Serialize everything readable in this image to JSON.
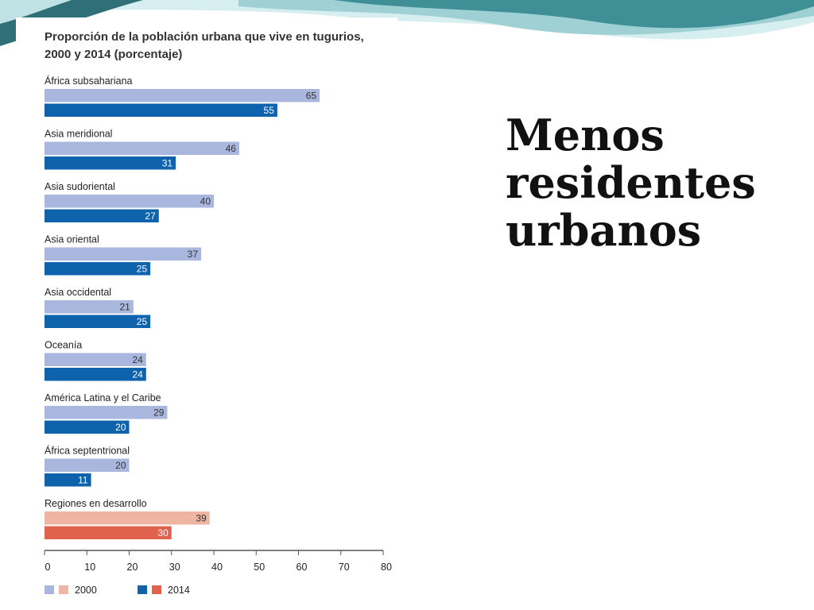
{
  "slide": {
    "heading": "Menos residentes urbanos"
  },
  "colors": {
    "bar_2000": "#a9b6dd",
    "bar_2014": "#0f63ad",
    "dev_2000": "#efb5a3",
    "dev_2014": "#e0614c",
    "axis": "#555555",
    "wave_dark": "#2f7f86",
    "wave_light": "#bfe2e4"
  },
  "chart_data": {
    "type": "bar",
    "orientation": "horizontal",
    "title_lines": [
      "Proporción de la población urbana que vive en tugurios,",
      "2000 y 2014 (porcentaje)"
    ],
    "categories": [
      "África subsahariana",
      "Asia meridional",
      "Asia sudoriental",
      "Asia oriental",
      "Asia occidental",
      "Oceanía",
      "América Latina y el Caribe",
      "África septentrional",
      "Regiones en desarrollo"
    ],
    "series": [
      {
        "name": "2000",
        "values": [
          65,
          46,
          40,
          37,
          21,
          24,
          29,
          20,
          39
        ]
      },
      {
        "name": "2014",
        "values": [
          55,
          31,
          27,
          25,
          25,
          24,
          20,
          11,
          30
        ]
      }
    ],
    "highlight_category": "Regiones en desarrollo",
    "xlim": [
      0,
      80
    ],
    "xticks": [
      0,
      10,
      20,
      30,
      40,
      50,
      60,
      70,
      80
    ],
    "grid": false,
    "legend": [
      {
        "label": "2000",
        "swatches": [
          "bar_2000",
          "dev_2000"
        ]
      },
      {
        "label": "2014",
        "swatches": [
          "bar_2014",
          "dev_2014"
        ]
      }
    ],
    "legend_position": "bottom-left"
  }
}
